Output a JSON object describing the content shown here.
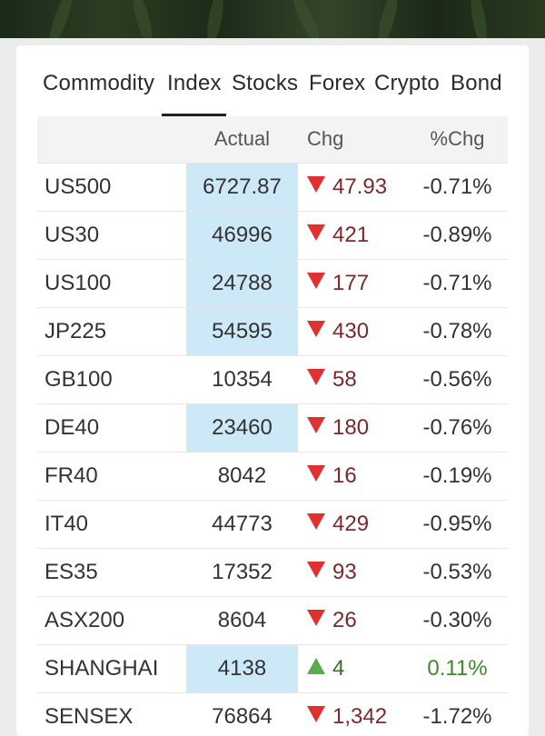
{
  "tabs": [
    "Commodity",
    "Index",
    "Stocks",
    "Forex",
    "Crypto",
    "Bond"
  ],
  "active_tab": "Index",
  "table": {
    "headers": {
      "name": "",
      "actual": "Actual",
      "chg": "Chg",
      "pct": "%Chg"
    },
    "rows": [
      {
        "name": "US500",
        "actual": "6727.87",
        "chg": "47.93",
        "pct": "-0.71%",
        "dir": "down",
        "highlight": true
      },
      {
        "name": "US30",
        "actual": "46996",
        "chg": "421",
        "pct": "-0.89%",
        "dir": "down",
        "highlight": true
      },
      {
        "name": "US100",
        "actual": "24788",
        "chg": "177",
        "pct": "-0.71%",
        "dir": "down",
        "highlight": true
      },
      {
        "name": "JP225",
        "actual": "54595",
        "chg": "430",
        "pct": "-0.78%",
        "dir": "down",
        "highlight": true
      },
      {
        "name": "GB100",
        "actual": "10354",
        "chg": "58",
        "pct": "-0.56%",
        "dir": "down",
        "highlight": false
      },
      {
        "name": "DE40",
        "actual": "23460",
        "chg": "180",
        "pct": "-0.76%",
        "dir": "down",
        "highlight": true
      },
      {
        "name": "FR40",
        "actual": "8042",
        "chg": "16",
        "pct": "-0.19%",
        "dir": "down",
        "highlight": false
      },
      {
        "name": "IT40",
        "actual": "44773",
        "chg": "429",
        "pct": "-0.95%",
        "dir": "down",
        "highlight": false
      },
      {
        "name": "ES35",
        "actual": "17352",
        "chg": "93",
        "pct": "-0.53%",
        "dir": "down",
        "highlight": false
      },
      {
        "name": "ASX200",
        "actual": "8604",
        "chg": "26",
        "pct": "-0.30%",
        "dir": "down",
        "highlight": false
      },
      {
        "name": "SHANGHAI",
        "actual": "4138",
        "chg": "4",
        "pct": "0.11%",
        "dir": "up",
        "highlight": true
      },
      {
        "name": "SENSEX",
        "actual": "76864",
        "chg": "1,342",
        "pct": "-1.72%",
        "dir": "down",
        "highlight": false
      }
    ]
  },
  "colors": {
    "down_arrow": "#e03030",
    "up_arrow": "#5caa4c",
    "negative_text": "#9a2222",
    "positive_text": "#3e8a2e",
    "highlight_cell": "#cde9f7"
  }
}
